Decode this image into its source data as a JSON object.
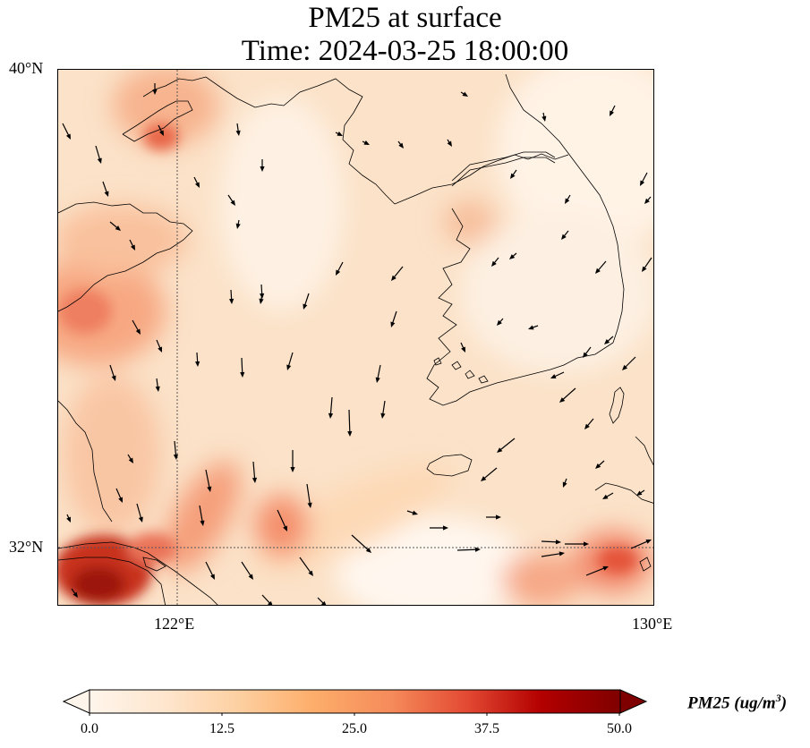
{
  "title": {
    "line1": "PM25 at surface",
    "line2": "Time: 2024-03-25 18:00:00"
  },
  "axes": {
    "lat_labels": [
      "40°N",
      "32°N"
    ],
    "lon_labels": [
      "122°E",
      "130°E"
    ]
  },
  "colorbar": {
    "label_text": "PM25 (ug/m",
    "label_sup": "3",
    "label_close": ")",
    "ticks": [
      "0.0",
      "12.5",
      "25.0",
      "37.5",
      "50.0"
    ],
    "colors": [
      "#fff5eb",
      "#fee6ce",
      "#fdd0a2",
      "#fdae6b",
      "#f16913",
      "#d7301f",
      "#b30000",
      "#7f0000"
    ]
  },
  "map": {
    "base_color": "#fbe2c8",
    "coast_color": "#000000",
    "arrow_color": "#000000",
    "gridline_color": "#555555"
  }
}
